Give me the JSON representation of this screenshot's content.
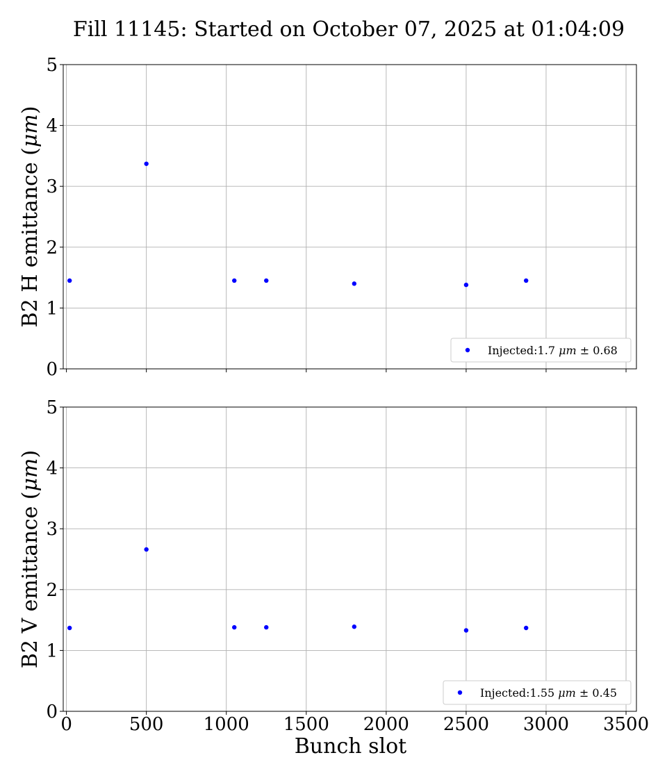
{
  "title": "Fill 11145: Started on October 07, 2025 at 01:04:09",
  "chart_data": [
    {
      "type": "scatter",
      "ylabel": "B2 H emittance (μm)",
      "xlabel": "",
      "xlim": [
        -20,
        3565
      ],
      "ylim": [
        0,
        5
      ],
      "xticks": [
        0,
        500,
        1000,
        1500,
        2000,
        2500,
        3000,
        3500
      ],
      "yticks": [
        0,
        1,
        2,
        3,
        4,
        5
      ],
      "show_xticklabels": false,
      "grid": true,
      "legend_position": "lower-right",
      "series": [
        {
          "name": "Injected:1.7 μm ± 0.68",
          "color": "#0000ff",
          "x": [
            20,
            500,
            1050,
            1250,
            1800,
            2500,
            2875
          ],
          "y": [
            1.45,
            3.37,
            1.45,
            1.45,
            1.4,
            1.38,
            1.45
          ]
        }
      ]
    },
    {
      "type": "scatter",
      "ylabel": "B2 V emittance (μm)",
      "xlabel": "Bunch slot",
      "xlim": [
        -20,
        3565
      ],
      "ylim": [
        0,
        5
      ],
      "xticks": [
        0,
        500,
        1000,
        1500,
        2000,
        2500,
        3000,
        3500
      ],
      "yticks": [
        0,
        1,
        2,
        3,
        4,
        5
      ],
      "show_xticklabels": true,
      "grid": true,
      "legend_position": "lower-right",
      "series": [
        {
          "name": "Injected:1.55 μm ± 0.45",
          "color": "#0000ff",
          "x": [
            20,
            500,
            1050,
            1250,
            1800,
            2500,
            2875
          ],
          "y": [
            1.37,
            2.66,
            1.38,
            1.38,
            1.39,
            1.33,
            1.37
          ]
        }
      ]
    }
  ]
}
